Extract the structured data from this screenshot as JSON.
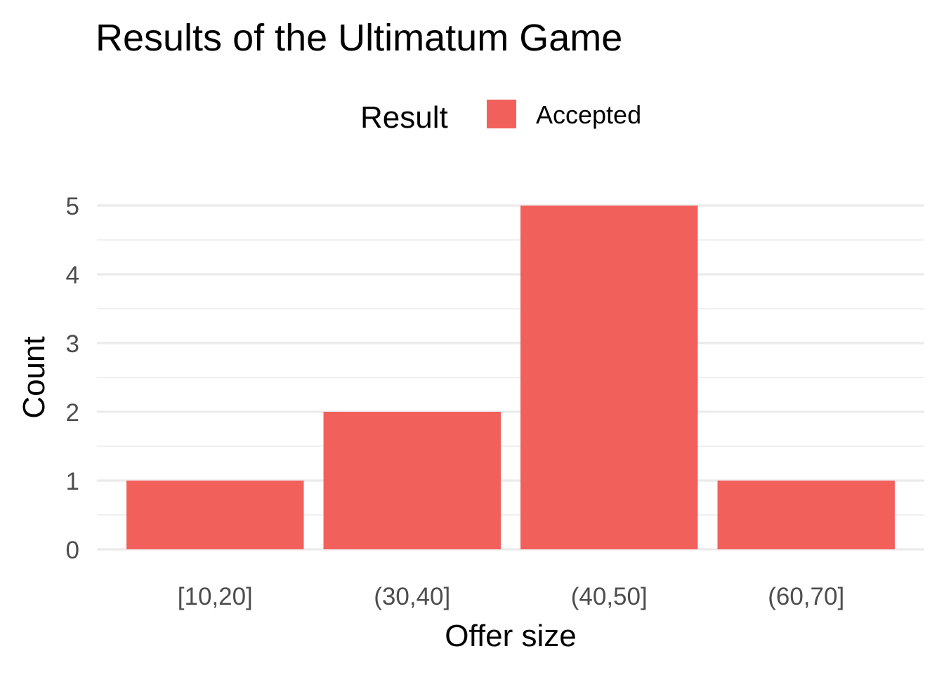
{
  "chart_data": {
    "type": "bar",
    "title": "Results of the Ultimatum Game",
    "xlabel": "Offer size",
    "ylabel": "Count",
    "categories": [
      "[10,20]",
      "(30,40]",
      "(40,50]",
      "(60,70]"
    ],
    "series": [
      {
        "name": "Accepted",
        "values": [
          1,
          2,
          5,
          1
        ]
      }
    ],
    "ylim": [
      0,
      5
    ],
    "y_ticks": [
      0,
      1,
      2,
      3,
      4,
      5
    ],
    "legend": {
      "title": "Result",
      "position": "top",
      "entries": [
        "Accepted"
      ]
    },
    "grid": true,
    "colors": {
      "Accepted": "#F2605C",
      "grid": "#EBEBEB",
      "text": "#000000",
      "tick_text": "#4D4D4D"
    }
  }
}
